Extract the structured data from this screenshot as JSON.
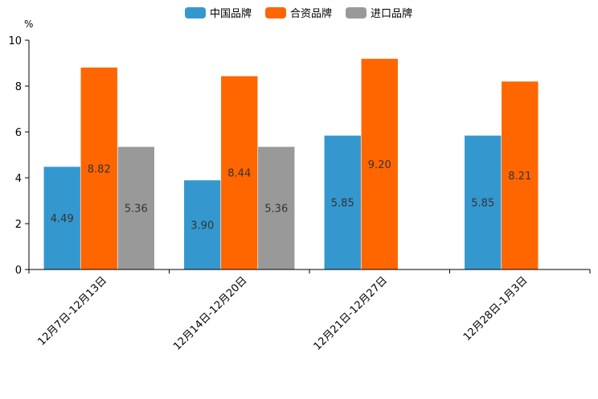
{
  "chart_data": {
    "type": "bar",
    "title": "",
    "xlabel": "",
    "ylabel": "%",
    "ylim": [
      0,
      10
    ],
    "yticks": [
      0,
      2,
      4,
      6,
      8,
      10
    ],
    "grid": false,
    "legend_position": "top-center",
    "categories": [
      "12月7日-12月13日",
      "12月14日-12月20日",
      "12月21日-12月27日",
      "12月28日-1月3日"
    ],
    "series": [
      {
        "name": "中国品牌",
        "color": "#3498cf",
        "values": [
          4.49,
          3.9,
          5.85,
          5.85
        ],
        "labels": [
          "4.49",
          "3.90",
          "5.85",
          "5.85"
        ]
      },
      {
        "name": "合资品牌",
        "color": "#ff6600",
        "values": [
          8.82,
          8.44,
          9.2,
          8.21
        ],
        "labels": [
          "8.82",
          "8.44",
          "9.20",
          "8.21"
        ]
      },
      {
        "name": "进口品牌",
        "color": "#999999",
        "values": [
          5.36,
          5.36,
          null,
          null
        ],
        "labels": [
          "5.36",
          "5.36",
          null,
          null
        ]
      }
    ]
  }
}
